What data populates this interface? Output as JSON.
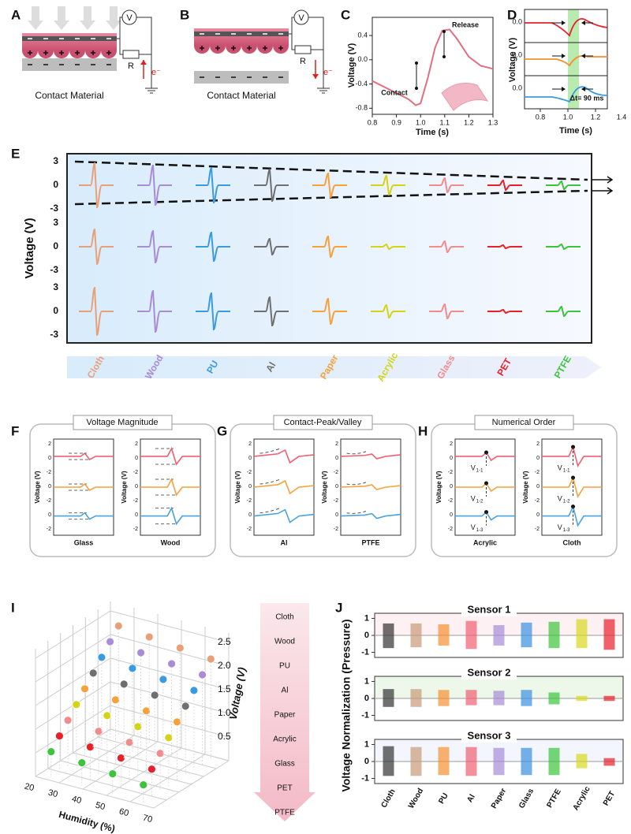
{
  "panel_labels": [
    "A",
    "B",
    "C",
    "D",
    "E",
    "F",
    "G",
    "H",
    "I",
    "J"
  ],
  "A": {
    "meter": "V",
    "resistor": "R",
    "electron": "e⁻",
    "material": "Contact Material"
  },
  "B": {
    "meter": "V",
    "resistor": "R",
    "electron": "e⁻",
    "material": "Contact Material"
  },
  "C": {
    "xlabel": "Time (s)",
    "ylabel": "Voltage (V)",
    "contact": "Contact",
    "release": "Release",
    "x": [
      0.8,
      0.85,
      0.9,
      0.95,
      0.98,
      1.0,
      1.03,
      1.06,
      1.09,
      1.12,
      1.15,
      1.2,
      1.25,
      1.3
    ],
    "values": [
      -0.35,
      -0.45,
      -0.55,
      -0.65,
      -0.75,
      -0.72,
      -0.3,
      0.2,
      0.48,
      0.5,
      0.35,
      0.05,
      -0.1,
      -0.15
    ],
    "xlim": [
      0.8,
      1.3
    ],
    "ylim": [
      -0.9,
      0.7
    ],
    "xticks": [
      0.8,
      0.9,
      {
        "value": 1,
        "label": "1.0"
      },
      1.1,
      1.2,
      1.3
    ],
    "yticks": [
      0.4,
      {
        "value": 0,
        "label": "0.0"
      },
      -0.4,
      -0.8
    ]
  },
  "D": {
    "xlabel": "Time (s)",
    "ylabel": "Voltage (V)",
    "delay": "Δt= 90 ms",
    "ytick_labels": [
      "0.0",
      "0.0",
      "0.0"
    ],
    "xtick_labels": [
      "0.8",
      "1.0",
      "1.2",
      "1.4"
    ]
  },
  "E": {
    "ylabel": "Voltage (V)",
    "ytick_labels": [
      "3",
      "0",
      "-3"
    ],
    "materials": [
      "Cloth",
      "Wood",
      "PU",
      "Al",
      "Paper",
      "Acrylic",
      "Glass",
      "PET",
      "PTFE"
    ],
    "colors": [
      "#e8a07a",
      "#a98bd6",
      "#3a9be0",
      "#6f6f6f",
      "#f5a13c",
      "#d4d414",
      "#f08c8c",
      "#e8202a",
      "#3cc43c"
    ],
    "amplitudes": [
      [
        2.8,
        2.5,
        2.2,
        2.0,
        1.5,
        1.2,
        0.9,
        0.6,
        0.5
      ],
      [
        2.2,
        2.0,
        1.8,
        1.0,
        1.3,
        0.3,
        0.7,
        0.2,
        0.3
      ],
      [
        3.0,
        2.6,
        2.3,
        1.8,
        1.6,
        0.8,
        0.9,
        0.2,
        0.6
      ]
    ]
  },
  "F": {
    "title": "Voltage Magnitude",
    "ylabel": "Voltage (V)",
    "plots": [
      "Glass",
      "Wood"
    ],
    "ytick_labels": [
      "2",
      "0",
      "-2",
      "0",
      "-2",
      "0",
      "-2"
    ]
  },
  "G": {
    "title": "Contact-Peak/Valley",
    "ylabel": "Voltage (V)",
    "plots": [
      "Al",
      "PTFE"
    ],
    "ytick_labels": [
      "2",
      "0",
      "-2",
      "0",
      "-2",
      "0",
      "-2"
    ]
  },
  "H": {
    "title": "Numerical Order",
    "ylabel": "Voltage (V)",
    "plots": [
      "Acrylic",
      "Cloth"
    ],
    "ytick_labels": [
      "2",
      "0",
      "-2",
      "0",
      "-2",
      "0",
      "-2"
    ],
    "v_labels": [
      {
        "main": "V",
        "sub": "1-1"
      },
      {
        "main": "V",
        "sub": "1-2"
      },
      {
        "main": "V",
        "sub": "1-3"
      }
    ]
  },
  "I": {
    "xlabel": "Humidity (%)",
    "xtick_labels": [
      "20",
      "30",
      "40",
      "50",
      "60",
      "70"
    ],
    "zlabel": "Voltage (V)",
    "ztick_labels": [
      "2.5",
      "2.0",
      "1.5",
      "1.0",
      "0.5"
    ],
    "order": [
      "Cloth",
      "Wood",
      "PU",
      "Al",
      "Paper",
      "Acrylic",
      "Glass",
      "PET",
      "PTFE"
    ]
  },
  "J": {
    "ylabel": "Voltage Normalization (Pressure)",
    "yticks": [
      1,
      0,
      -1
    ],
    "ylim": [
      -1.3,
      1.3
    ],
    "categories": [
      "Cloth",
      "Wood",
      "PU",
      "Al",
      "Paper",
      "Glass",
      "PTFE",
      "Acrylic",
      "PET"
    ],
    "colors": [
      "#333333",
      "#c89a78",
      "#f59030",
      "#f06070",
      "#a78bd6",
      "#3a90e0",
      "#3cc43c",
      "#d8d820",
      "#e8202a"
    ],
    "sensors": [
      {
        "name": "Sensor 1",
        "pos": [
          0.7,
          0.7,
          0.65,
          0.85,
          0.6,
          0.75,
          0.8,
          0.95,
          0.95
        ],
        "neg": [
          -0.75,
          -0.7,
          -0.6,
          -0.8,
          -0.6,
          -0.7,
          -0.75,
          -0.75,
          -0.85
        ]
      },
      {
        "name": "Sensor 2",
        "pos": [
          0.55,
          0.55,
          0.5,
          0.5,
          0.45,
          0.5,
          0.35,
          0.15,
          0.15
        ],
        "neg": [
          -0.5,
          -0.5,
          -0.45,
          -0.4,
          -0.4,
          -0.45,
          -0.35,
          -0.15,
          -0.15
        ]
      },
      {
        "name": "Sensor 3",
        "pos": [
          0.9,
          0.85,
          0.85,
          0.85,
          0.8,
          0.8,
          0.8,
          0.45,
          0.2
        ],
        "neg": [
          -0.85,
          -0.85,
          -0.8,
          -0.85,
          -0.8,
          -0.8,
          -0.8,
          -0.4,
          -0.25
        ]
      }
    ]
  }
}
